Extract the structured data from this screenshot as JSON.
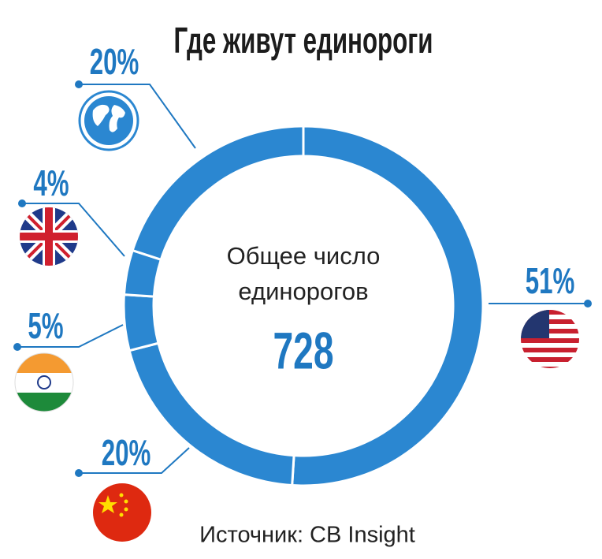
{
  "chart_data": {
    "type": "donut",
    "title": "Где живут единороги",
    "center_text": [
      "Общее число",
      "единорогов"
    ],
    "total": 728,
    "values": [
      51,
      20,
      5,
      4,
      20
    ],
    "value_labels": [
      "51%",
      "20%",
      "5%",
      "4%",
      "20%"
    ],
    "color": "#2b87d1",
    "label_color": "#1f78c1",
    "source": "Источник: CB Insight"
  }
}
